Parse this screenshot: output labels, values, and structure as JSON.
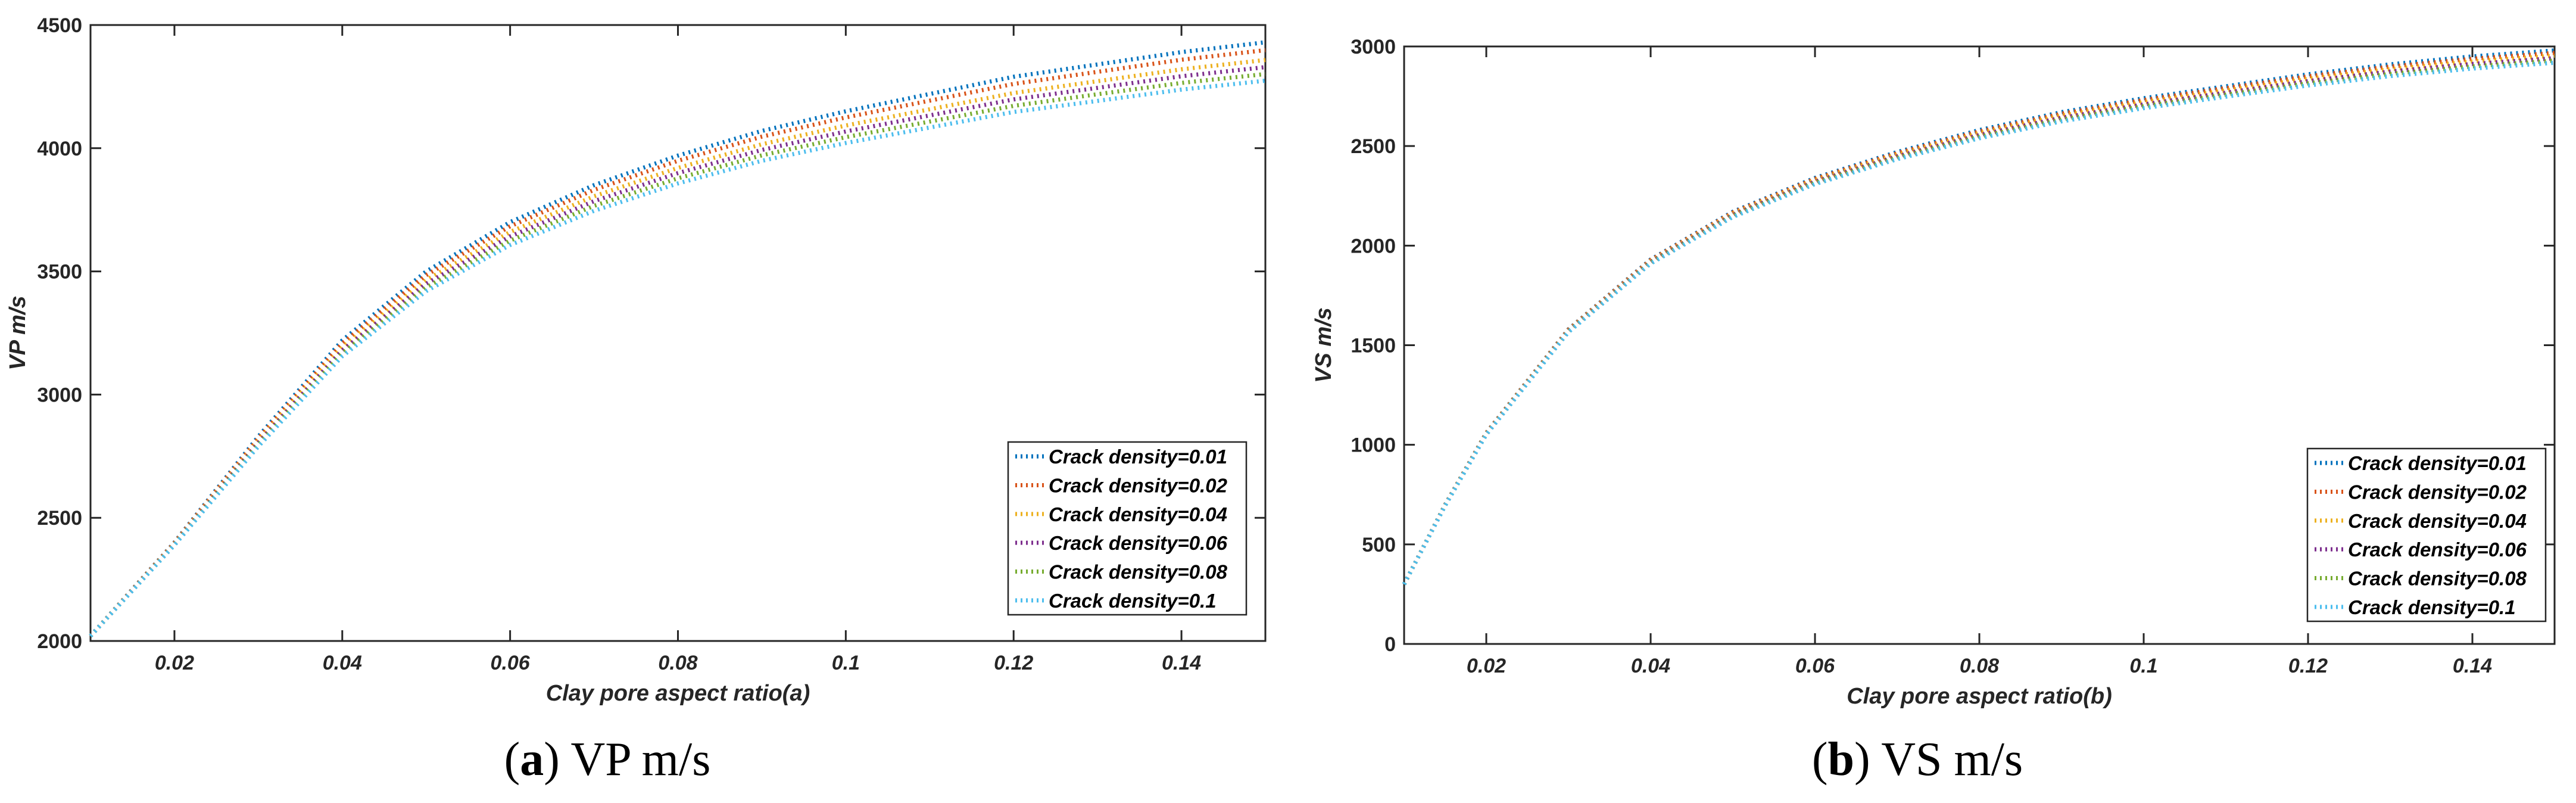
{
  "figure": {
    "caption_a": {
      "letter": "a",
      "text": "VP m/s"
    },
    "caption_b": {
      "letter": "b",
      "text": "VS m/s"
    }
  },
  "chart_data": [
    {
      "type": "line",
      "panel": "a",
      "title": "",
      "xlabel": "Clay pore aspect ratio(a)",
      "ylabel": "VP m/s",
      "xlim": [
        0.01,
        0.15
      ],
      "ylim": [
        2000,
        4500
      ],
      "xticks": [
        0.02,
        0.04,
        0.06,
        0.08,
        0.1,
        0.12,
        0.14
      ],
      "xtick_labels": [
        "0.02",
        "0.04",
        "0.06",
        "0.08",
        "0.1",
        "0.12",
        "0.14"
      ],
      "yticks": [
        2000,
        2500,
        3000,
        3500,
        4000,
        4500
      ],
      "ytick_labels": [
        "2000",
        "2500",
        "3000",
        "3500",
        "4000",
        "4500"
      ],
      "legend_position": "bottom-right",
      "line_style": "dotted",
      "x": [
        0.01,
        0.02,
        0.03,
        0.04,
        0.05,
        0.06,
        0.07,
        0.08,
        0.09,
        0.1,
        0.11,
        0.12,
        0.13,
        0.14,
        0.15
      ],
      "series": [
        {
          "name": "Crack density=0.01",
          "color": "#0072BD",
          "values": [
            2020,
            2400,
            2830,
            3220,
            3500,
            3700,
            3850,
            3970,
            4070,
            4150,
            4220,
            4290,
            4340,
            4390,
            4430
          ]
        },
        {
          "name": "Crack density=0.02",
          "color": "#D95319",
          "values": [
            2020,
            2398,
            2822,
            3208,
            3485,
            3683,
            3831,
            3949,
            4047,
            4125,
            4193,
            4261,
            4310,
            4359,
            4398
          ]
        },
        {
          "name": "Crack density=0.04",
          "color": "#EDB120",
          "values": [
            2020,
            2395,
            2812,
            3192,
            3465,
            3660,
            3805,
            3920,
            4016,
            4092,
            4158,
            4224,
            4272,
            4320,
            4358
          ]
        },
        {
          "name": "Crack density=0.06",
          "color": "#7E2F8E",
          "values": [
            2020,
            2393,
            2805,
            3180,
            3450,
            3642,
            3785,
            3899,
            3993,
            4068,
            4133,
            4198,
            4245,
            4292,
            4329
          ]
        },
        {
          "name": "Crack density=0.08",
          "color": "#77AC30",
          "values": [
            2020,
            2391,
            2797,
            3168,
            3435,
            3625,
            3766,
            3878,
            3971,
            4045,
            4108,
            4172,
            4219,
            4265,
            4301
          ]
        },
        {
          "name": "Crack density=0.1",
          "color": "#4DBEEE",
          "values": [
            2020,
            2389,
            2790,
            3156,
            3420,
            3607,
            3746,
            3857,
            3949,
            4021,
            4084,
            4147,
            4192,
            4238,
            4274
          ]
        }
      ]
    },
    {
      "type": "line",
      "panel": "b",
      "title": "",
      "xlabel": "Clay pore aspect ratio(b)",
      "ylabel": "VS m/s",
      "xlim": [
        0.01,
        0.15
      ],
      "ylim": [
        0,
        3000
      ],
      "xticks": [
        0.02,
        0.04,
        0.06,
        0.08,
        0.1,
        0.12,
        0.14
      ],
      "xtick_labels": [
        "0.02",
        "0.04",
        "0.06",
        "0.08",
        "0.1",
        "0.12",
        "0.14"
      ],
      "yticks": [
        0,
        500,
        1000,
        1500,
        2000,
        2500,
        3000
      ],
      "ytick_labels": [
        "0",
        "500",
        "1000",
        "1500",
        "2000",
        "2500",
        "3000"
      ],
      "legend_position": "bottom-right",
      "line_style": "dotted",
      "x": [
        0.01,
        0.015,
        0.02,
        0.03,
        0.04,
        0.05,
        0.06,
        0.07,
        0.08,
        0.09,
        0.1,
        0.11,
        0.12,
        0.13,
        0.14,
        0.15
      ],
      "series": [
        {
          "name": "Crack density=0.01",
          "color": "#0072BD",
          "values": [
            300,
            700,
            1060,
            1580,
            1930,
            2170,
            2340,
            2470,
            2580,
            2670,
            2740,
            2800,
            2860,
            2910,
            2950,
            2980
          ]
        },
        {
          "name": "Crack density=0.02",
          "color": "#D95319",
          "values": [
            300,
            699,
            1059,
            1578,
            1927,
            2166,
            2335,
            2464,
            2573,
            2662,
            2731,
            2791,
            2850,
            2899,
            2938,
            2967
          ]
        },
        {
          "name": "Crack density=0.04",
          "color": "#EDB120",
          "values": [
            300,
            698,
            1057,
            1575,
            1922,
            2160,
            2328,
            2456,
            2564,
            2652,
            2720,
            2779,
            2838,
            2886,
            2925,
            2954
          ]
        },
        {
          "name": "Crack density=0.06",
          "color": "#7E2F8E",
          "values": [
            300,
            697,
            1055,
            1572,
            1918,
            2154,
            2321,
            2448,
            2555,
            2642,
            2709,
            2768,
            2826,
            2874,
            2912,
            2941
          ]
        },
        {
          "name": "Crack density=0.08",
          "color": "#77AC30",
          "values": [
            300,
            696,
            1053,
            1569,
            1914,
            2149,
            2315,
            2441,
            2547,
            2633,
            2700,
            2758,
            2815,
            2862,
            2900,
            2929
          ]
        },
        {
          "name": "Crack density=0.1",
          "color": "#4DBEEE",
          "values": [
            300,
            695,
            1051,
            1566,
            1910,
            2144,
            2309,
            2434,
            2539,
            2624,
            2690,
            2748,
            2804,
            2851,
            2889,
            2918
          ]
        }
      ]
    }
  ]
}
